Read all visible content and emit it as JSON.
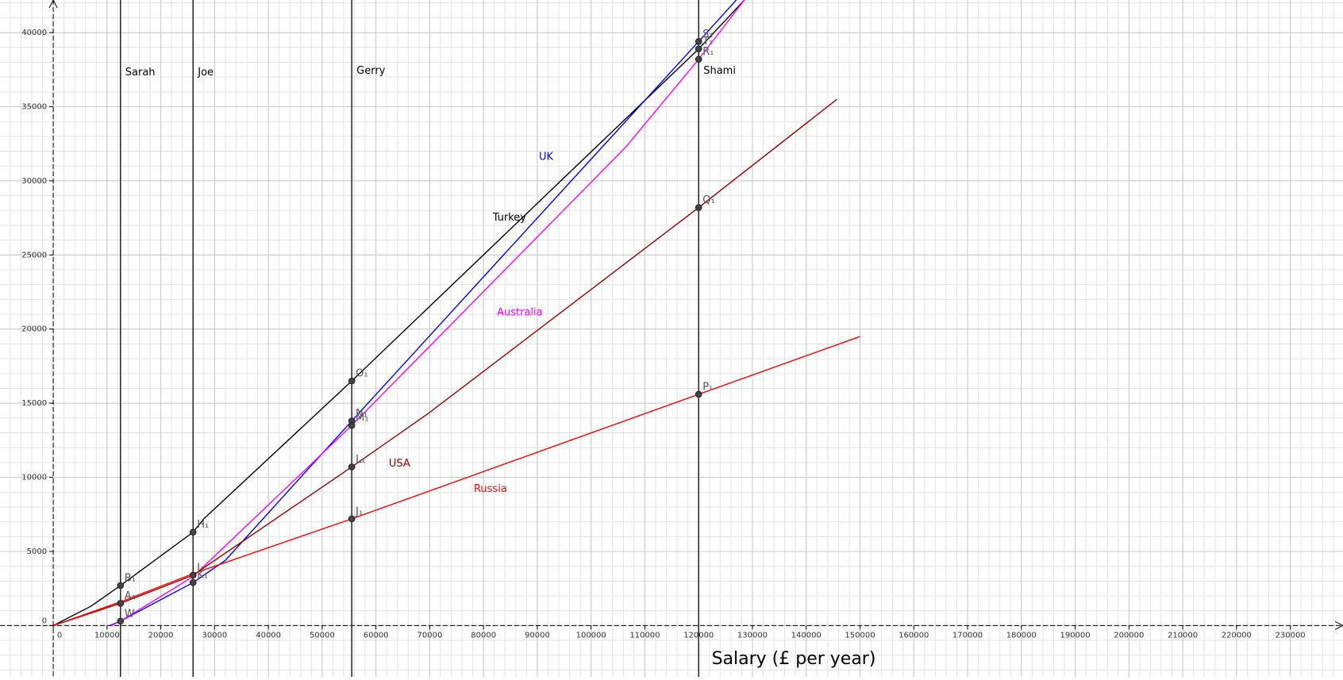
{
  "chart_data": {
    "type": "line",
    "xlabel": "Salary (£ per year)",
    "xlim": [
      -9900,
      239800
    ],
    "ylim": [
      -3460,
      42200
    ],
    "xticks": [
      0,
      10000,
      20000,
      30000,
      40000,
      50000,
      60000,
      70000,
      80000,
      90000,
      100000,
      110000,
      120000,
      130000,
      140000,
      150000,
      160000,
      170000,
      180000,
      190000,
      200000,
      210000,
      220000,
      230000
    ],
    "yticks": [
      0,
      5000,
      10000,
      15000,
      20000,
      25000,
      30000,
      35000,
      40000
    ],
    "grid": true,
    "series": [
      {
        "name": "Turkey",
        "color": "#000000",
        "label_at": [
          81700,
          27500
        ],
        "x": [
          0,
          7000,
          12500,
          26000,
          28000,
          55500,
          120000,
          128500
        ],
        "values": [
          0,
          1300,
          2700,
          6300,
          7200,
          16500,
          38900,
          42200
        ]
      },
      {
        "name": "UK",
        "color": "#0000ff",
        "label_at": [
          90300,
          31600
        ],
        "x": [
          10500,
          12500,
          26000,
          32000,
          55500,
          120000,
          127000
        ],
        "values": [
          0,
          300,
          2900,
          4400,
          13800,
          39400,
          42200
        ]
      },
      {
        "name": "Australia",
        "color": "#ff00ff",
        "label_at": [
          82500,
          21100
        ],
        "x": [
          10800,
          12500,
          26000,
          55500,
          106500,
          120000,
          128500
        ],
        "values": [
          0,
          300,
          3300,
          13500,
          32300,
          38200,
          42200
        ]
      },
      {
        "name": "USA",
        "color": "#990000",
        "label_at": [
          62400,
          10900
        ],
        "x": [
          0,
          12500,
          26000,
          55500,
          69700,
          120000,
          145700
        ],
        "values": [
          0,
          1500,
          3400,
          10700,
          14300,
          28200,
          35500
        ]
      },
      {
        "name": "Russia",
        "color": "#ff0000",
        "label_at": [
          78200,
          9200
        ],
        "x": [
          0,
          12500,
          26000,
          55500,
          120000,
          150000
        ],
        "values": [
          0,
          1600,
          3500,
          7200,
          15600,
          19500
        ]
      }
    ],
    "markers": [
      {
        "label": "Sarah",
        "x": 12500,
        "label_y": 37300
      },
      {
        "label": "Joe",
        "x": 26000,
        "label_y": 37300
      },
      {
        "label": "Gerry",
        "x": 55500,
        "label_y": 37400
      },
      {
        "label": "Shami",
        "x": 120000,
        "label_y": 37400
      }
    ],
    "points": [
      {
        "label": "B₁",
        "x": 12500,
        "y": 2700
      },
      {
        "label": "A₁",
        "x": 12500,
        "y": 1500
      },
      {
        "label": "W",
        "x": 12500,
        "y": 300
      },
      {
        "label": "H₁",
        "x": 26000,
        "y": 6300
      },
      {
        "label": "I₁",
        "x": 26000,
        "y": 3400
      },
      {
        "label": "K₁",
        "x": 26000,
        "y": 2900
      },
      {
        "label": "O₁",
        "x": 55500,
        "y": 16500
      },
      {
        "label": "N₁",
        "x": 55500,
        "y": 13800
      },
      {
        "label": "M₁",
        "x": 55500,
        "y": 13500
      },
      {
        "label": "L₁",
        "x": 55500,
        "y": 10700
      },
      {
        "label": "J₁",
        "x": 55500,
        "y": 7200
      },
      {
        "label": "S₁",
        "x": 120000,
        "y": 39400
      },
      {
        "label": "T₁",
        "x": 120000,
        "y": 38900
      },
      {
        "label": "R₁",
        "x": 120000,
        "y": 38200
      },
      {
        "label": "Q₁",
        "x": 120000,
        "y": 28200
      },
      {
        "label": "P₁",
        "x": 120000,
        "y": 15600
      }
    ]
  }
}
